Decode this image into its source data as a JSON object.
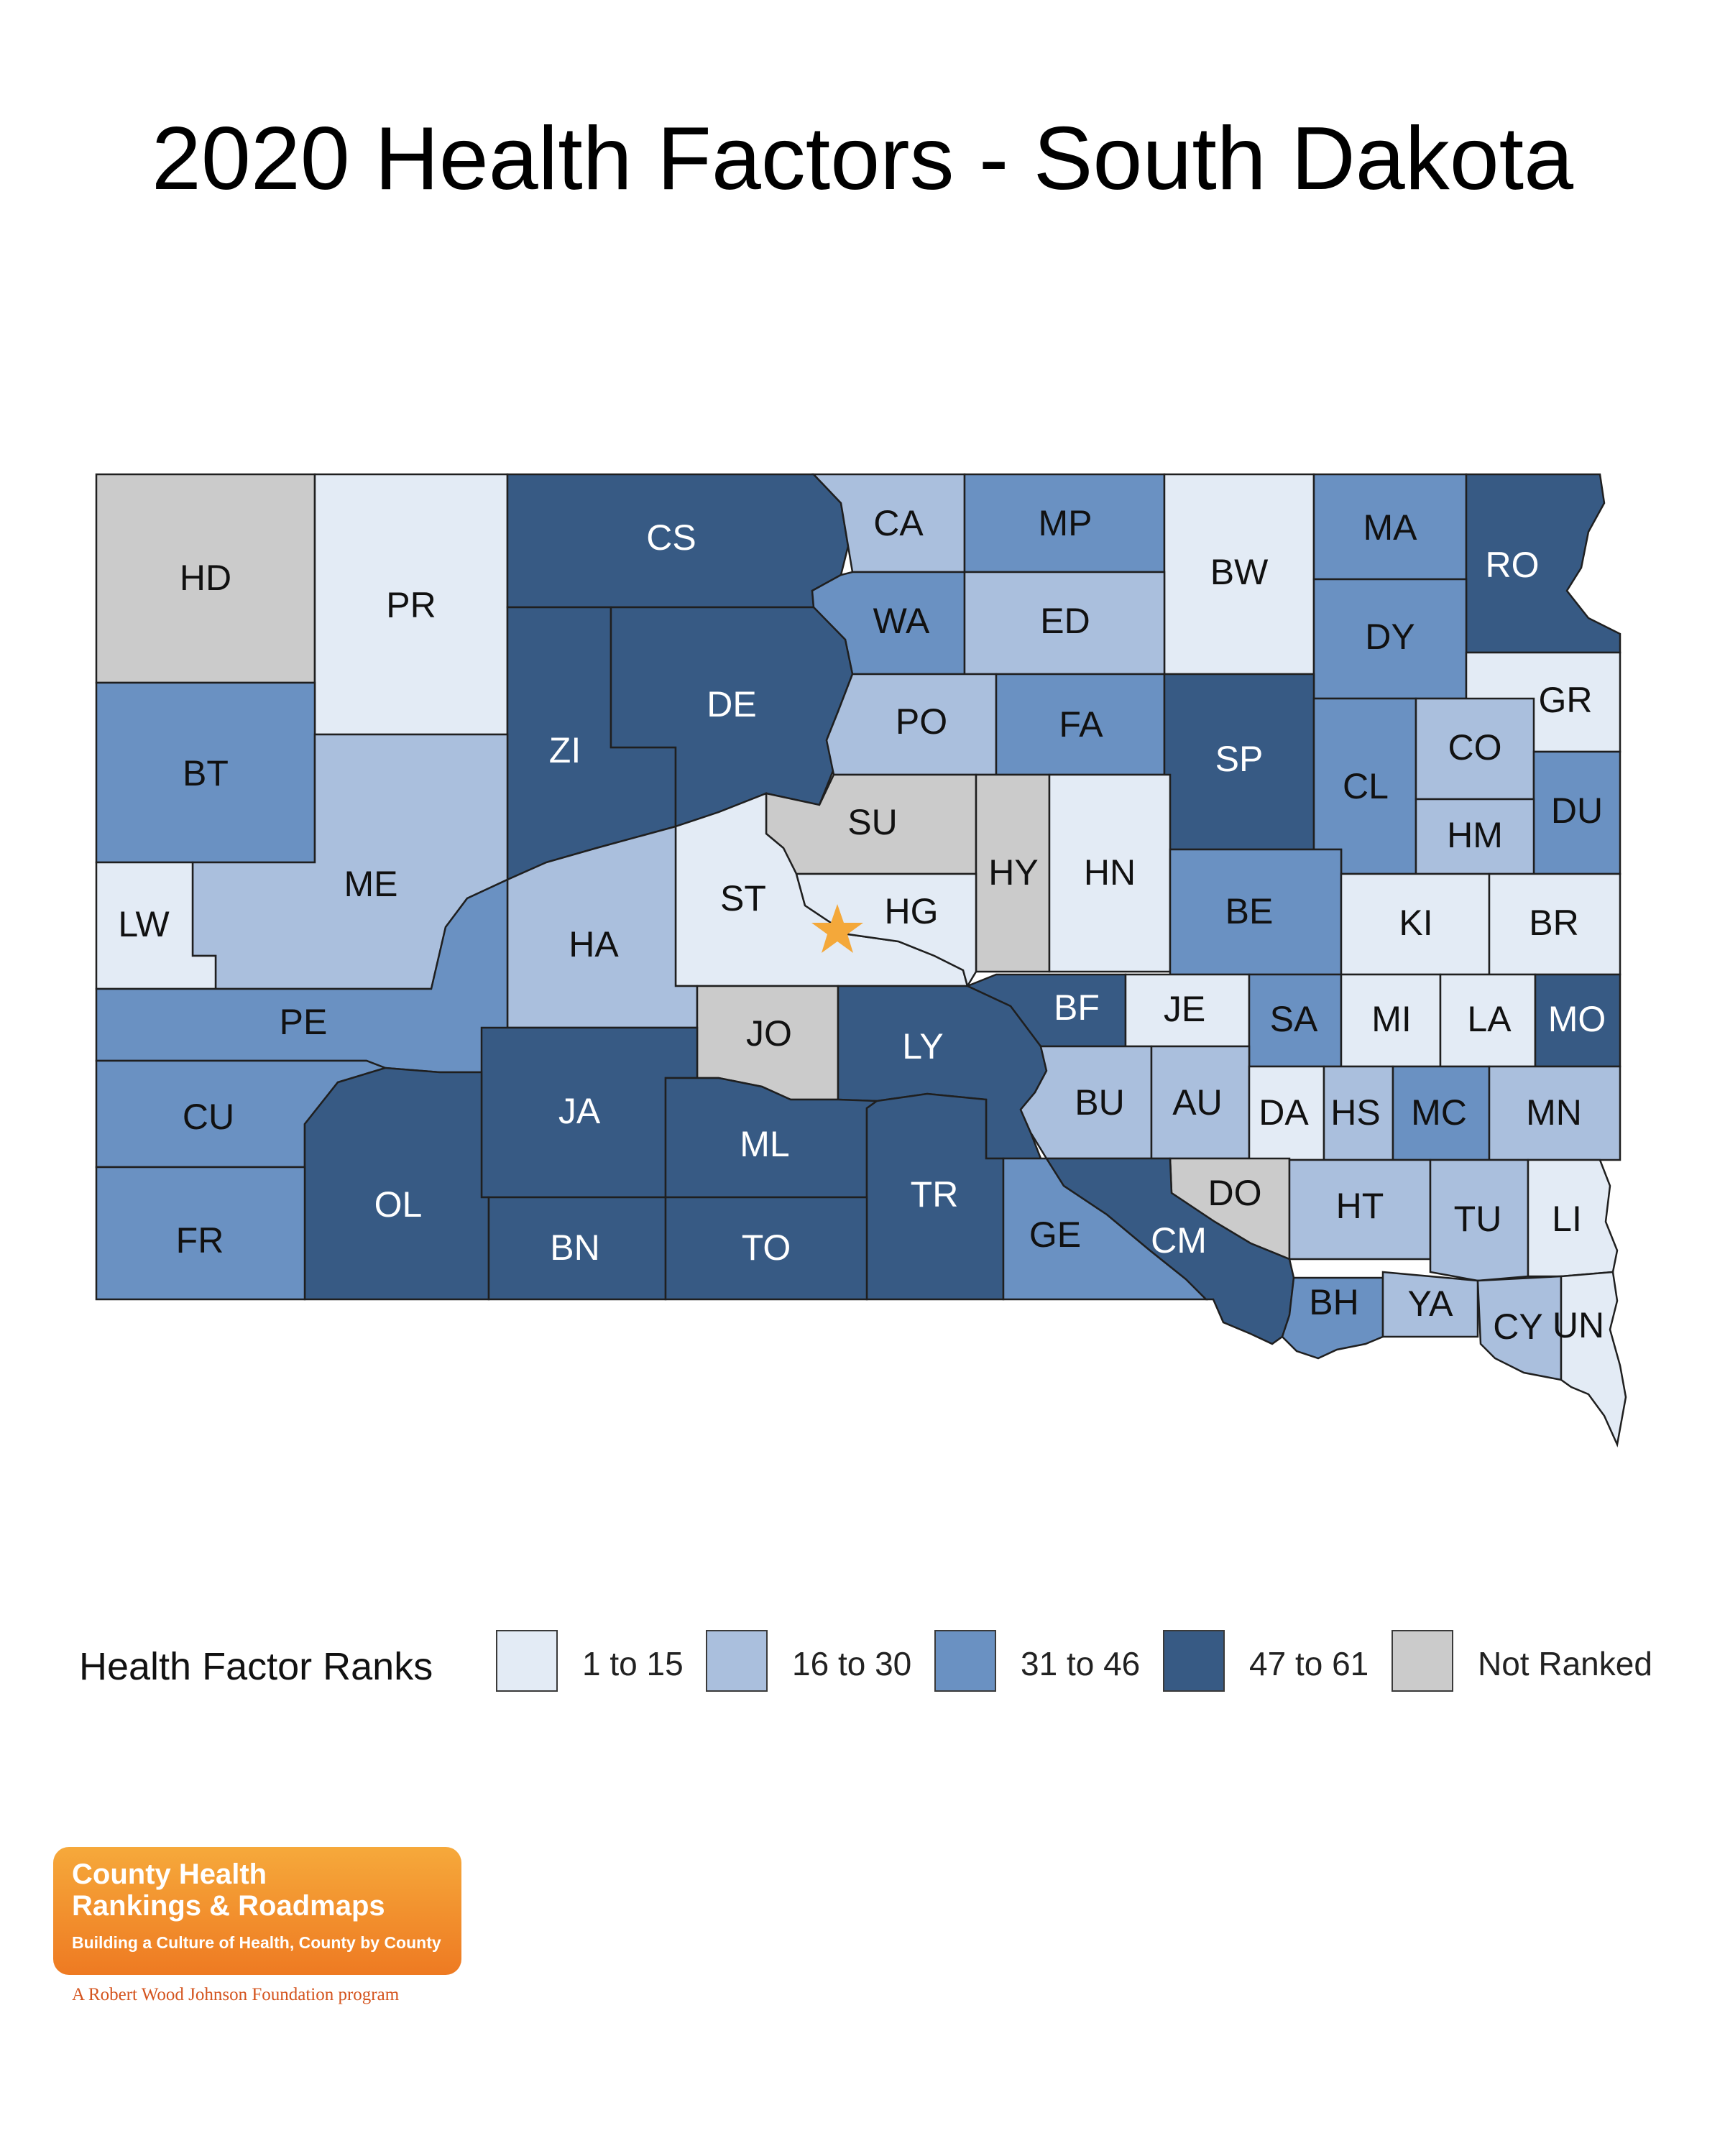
{
  "title": "2020 Health Factors - South Dakota",
  "colors": {
    "1 to 15": "#e3ebf5",
    "16 to 30": "#aabfdd",
    "31 to 46": "#6a91c2",
    "47 to 61": "#375a84",
    "Not Ranked": "#cbcbcb",
    "star": "#f4a83a"
  },
  "legend": {
    "title": "Health Factor Ranks",
    "items": [
      {
        "label": "1 to 15",
        "color": "#e3ebf5"
      },
      {
        "label": "16 to 30",
        "color": "#aabfdd"
      },
      {
        "label": "31 to 46",
        "color": "#6a91c2"
      },
      {
        "label": "47 to 61",
        "color": "#375a84"
      },
      {
        "label": "Not Ranked",
        "color": "#cbcbcb"
      }
    ]
  },
  "counties": {
    "HD": "Not Ranked",
    "PR": "1 to 15",
    "CS": "47 to 61",
    "CA": "16 to 30",
    "MP": "31 to 46",
    "BW": "1 to 15",
    "MA": "31 to 46",
    "RO": "47 to 61",
    "WA": "31 to 46",
    "ED": "16 to 30",
    "DY": "31 to 46",
    "GR": "1 to 15",
    "BT": "31 to 46",
    "ZI": "47 to 61",
    "DE": "47 to 61",
    "PO": "16 to 30",
    "FA": "31 to 46",
    "SP": "47 to 61",
    "CL": "31 to 46",
    "CO": "16 to 30",
    "DU": "31 to 46",
    "HM": "16 to 30",
    "ME": "16 to 30",
    "SU": "Not Ranked",
    "HY": "Not Ranked",
    "HN": "1 to 15",
    "LW": "1 to 15",
    "ST": "1 to 15",
    "HG": "1 to 15",
    "BE": "31 to 46",
    "KI": "1 to 15",
    "BR": "1 to 15",
    "HA": "16 to 30",
    "PE": "31 to 46",
    "BF": "47 to 61",
    "JE": "1 to 15",
    "SA": "31 to 46",
    "MI": "1 to 15",
    "LA": "1 to 15",
    "MO": "47 to 61",
    "JO": "Not Ranked",
    "LY": "47 to 61",
    "CU": "31 to 46",
    "JA": "47 to 61",
    "BU": "16 to 30",
    "AU": "16 to 30",
    "DA": "1 to 15",
    "HS": "16 to 30",
    "MC": "31 to 46",
    "MN": "16 to 30",
    "ML": "47 to 61",
    "OL": "47 to 61",
    "TR": "47 to 61",
    "DO": "Not Ranked",
    "HT": "16 to 30",
    "TU": "16 to 30",
    "LI": "1 to 15",
    "FR": "31 to 46",
    "BN": "47 to 61",
    "TO": "47 to 61",
    "GE": "31 to 46",
    "CM": "47 to 61",
    "BH": "31 to 46",
    "YA": "16 to 30",
    "CY": "16 to 30",
    "UN": "1 to 15"
  },
  "logo": {
    "line1": "County Health",
    "line2": "Rankings & Roadmaps",
    "tagline": "Building a Culture of Health, County by County",
    "sub": "A Robert Wood Johnson Foundation program"
  }
}
